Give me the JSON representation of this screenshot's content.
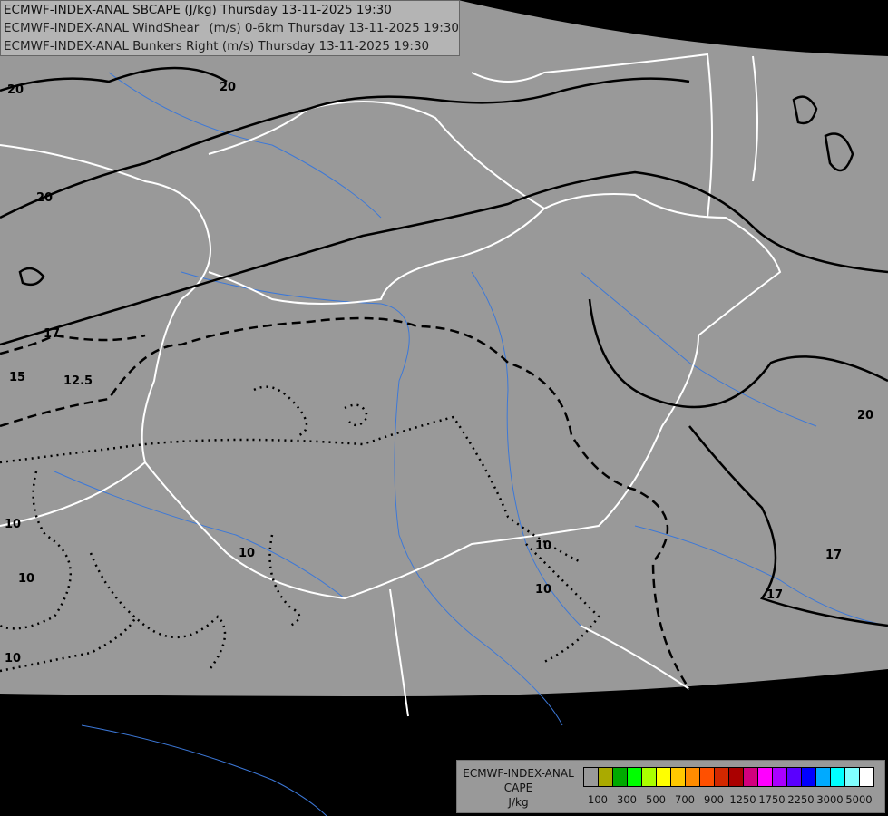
{
  "titles": [
    "ECMWF-INDEX-ANAL SBCAPE (J/kg) Thursday 13-11-2025 19:30",
    "ECMWF-INDEX-ANAL WindShear_ (m/s) 0-6km Thursday 13-11-2025 19:30",
    "ECMWF-INDEX-ANAL Bunkers Right (m/s) Thursday 13-11-2025 19:30"
  ],
  "legend": {
    "title_lines": [
      "ECMWF-INDEX-ANAL",
      "CAPE",
      "J/kg"
    ],
    "colors": [
      "#999999",
      "#aaaa00",
      "#00aa00",
      "#00ff00",
      "#aaff00",
      "#ffff00",
      "#ffc800",
      "#ff8c00",
      "#ff5000",
      "#d22800",
      "#aa0000",
      "#d2007d",
      "#ff00ff",
      "#aa00ff",
      "#5a00ff",
      "#0000ff",
      "#00aaff",
      "#00ffff",
      "#80ffff",
      "#ffffff"
    ],
    "tick_labels": [
      "100",
      "300",
      "500",
      "700",
      "900",
      "1250",
      "1750",
      "2250",
      "3000",
      "5000"
    ]
  },
  "map": {
    "domain_color": "#999999",
    "outside_color": "#000000",
    "border_color": "#ffffff",
    "river_color": "#3c78d8",
    "contour_labels": [
      "20",
      "20",
      "20",
      "20",
      "17",
      "17",
      "17",
      "15",
      "12.5",
      "10",
      "10",
      "10",
      "10",
      "10",
      "10"
    ]
  }
}
